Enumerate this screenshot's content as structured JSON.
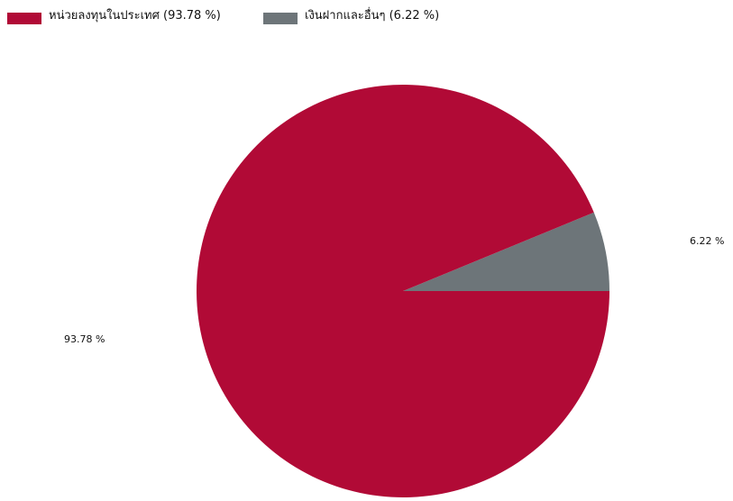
{
  "chart_data": {
    "type": "pie",
    "title": "",
    "series": [
      {
        "name": "หน่วยลงทุนในประเทศ",
        "value": 93.78,
        "label": "93.78 %",
        "legend_label": "หน่วยลงทุนในประเทศ (93.78 %)",
        "color": "#B10A36"
      },
      {
        "name": "เงินฝากและอื่นๆ",
        "value": 6.22,
        "label": "6.22 %",
        "legend_label": "เงินฝากและอื่นๆ (6.22 %)",
        "color": "#6D7579"
      }
    ],
    "legend_position": "top-left",
    "value_unit": "%"
  }
}
